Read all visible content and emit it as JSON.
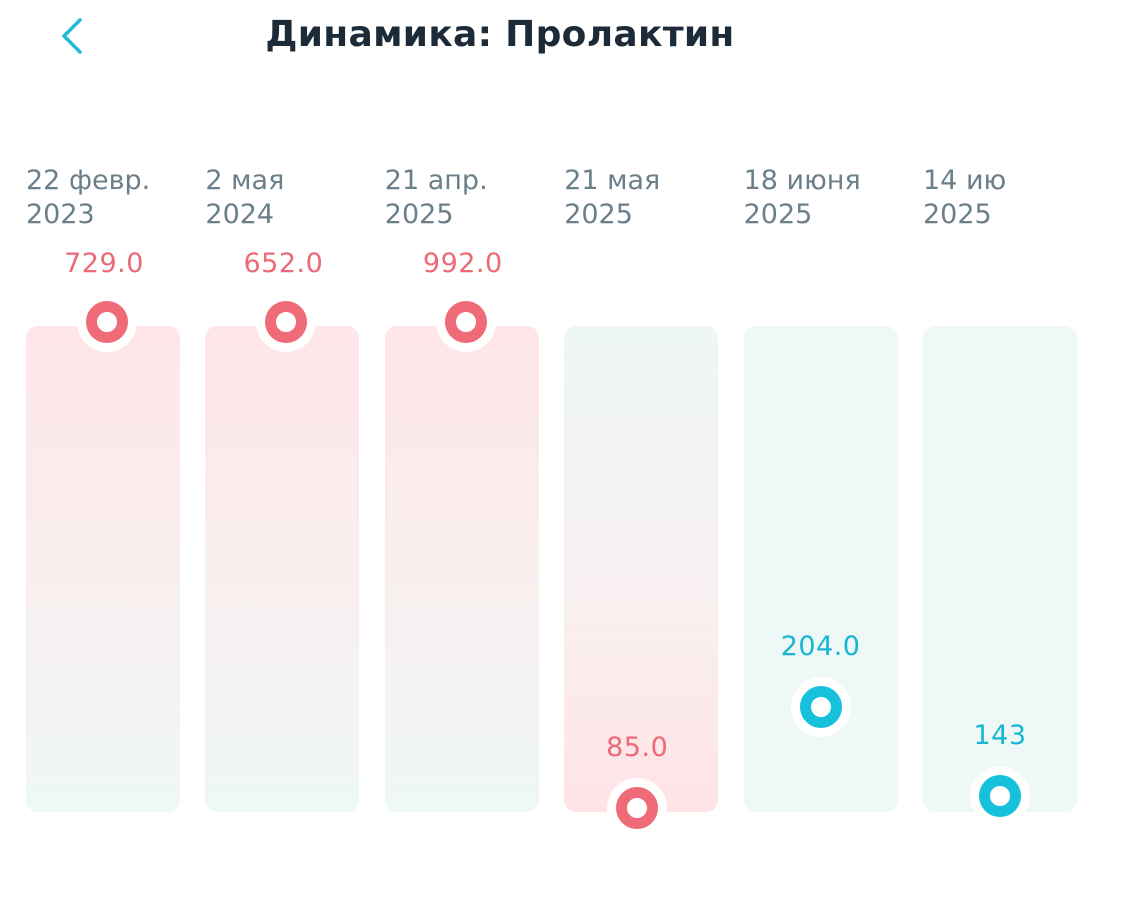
{
  "header": {
    "title": "Динамика: Пролактин",
    "back_icon": "chevron-left-icon"
  },
  "colors": {
    "high": "#f06b78",
    "normal": "#16c1dc",
    "title": "#1d2b38",
    "date": "#6b7f8a"
  },
  "chart_data": {
    "type": "scatter",
    "title": "Динамика: Пролактин",
    "categories": [
      "22 февр. 2023",
      "2 мая 2024",
      "21 апр. 2025",
      "21 мая 2025",
      "18 июня 2025",
      "14 ию 2025"
    ],
    "series": [
      {
        "values": [
          729.0,
          652.0,
          992.0,
          85.0,
          204.0,
          143
        ]
      }
    ],
    "points": [
      {
        "date_line1": "22 февр.",
        "date_line2": "2023",
        "value": 729.0,
        "label": "729.0",
        "status": "out-of-range"
      },
      {
        "date_line1": "2 мая",
        "date_line2": "2024",
        "value": 652.0,
        "label": "652.0",
        "status": "out-of-range"
      },
      {
        "date_line1": "21 апр.",
        "date_line2": "2025",
        "value": 992.0,
        "label": "992.0",
        "status": "out-of-range"
      },
      {
        "date_line1": "21 мая",
        "date_line2": "2025",
        "value": 85.0,
        "label": "85.0",
        "status": "out-of-range"
      },
      {
        "date_line1": "18 июня",
        "date_line2": "2025",
        "value": 204.0,
        "label": "204.0",
        "status": "in-range"
      },
      {
        "date_line1": "14 ию",
        "date_line2": "2025",
        "value": 143,
        "label": "143",
        "status": "in-range"
      }
    ],
    "grid": false,
    "legend": "none"
  }
}
